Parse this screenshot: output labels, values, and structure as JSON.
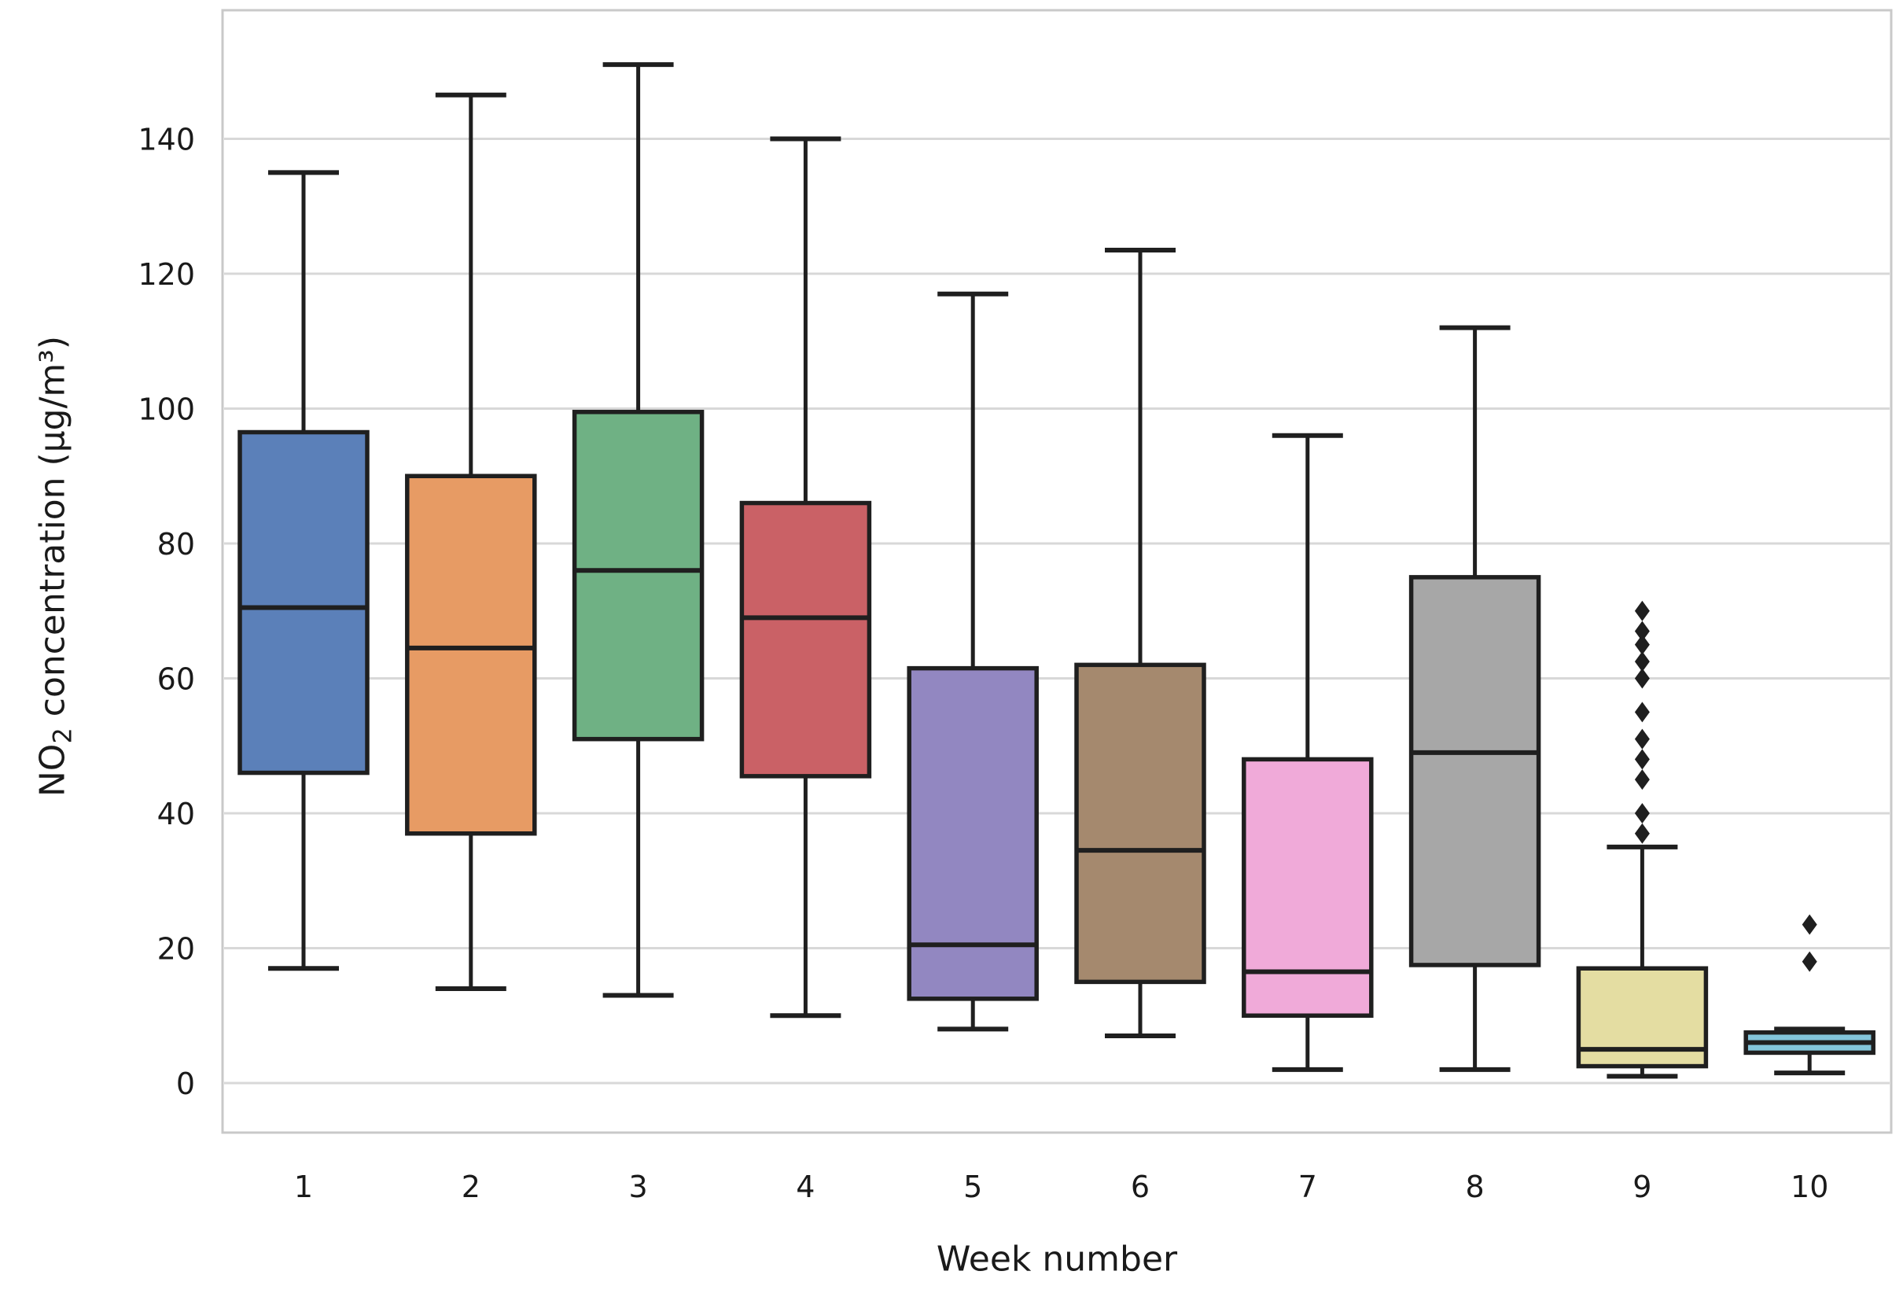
{
  "figure": {
    "background": "#ffffff",
    "xlabel": "Week number",
    "ylabel": {
      "main": "NO",
      "sub": "2",
      "rest": " concentration (µg/m³)"
    }
  },
  "colors": {
    "box_edge": "#1f1f1f",
    "median_line": "#1f1f1f",
    "whisker": "#1f1f1f",
    "outlier": "#1f1f1f",
    "gridline": "#d8d8d8",
    "spine": "#c9c9c9",
    "tick_text": "#1a1a1a"
  },
  "chart_data": {
    "type": "box",
    "title": "",
    "xlabel": "Week number",
    "ylabel": "NO2 concentration (µg/m³)",
    "categories": [
      "1",
      "2",
      "3",
      "4",
      "5",
      "6",
      "7",
      "8",
      "9",
      "10"
    ],
    "yticks": [
      0,
      20,
      40,
      60,
      80,
      100,
      120,
      140
    ],
    "ylim": [
      -7.5,
      159
    ],
    "grid": "horizontal-only",
    "legend": "none",
    "series": [
      {
        "week": "1",
        "color": "#5b80b9",
        "whisker_low": 17,
        "q1": 46,
        "median": 70.5,
        "q3": 96.5,
        "whisker_high": 135,
        "outliers": []
      },
      {
        "week": "2",
        "color": "#e79b64",
        "whisker_low": 14,
        "q1": 37,
        "median": 64.5,
        "q3": 90,
        "whisker_high": 146.5,
        "outliers": []
      },
      {
        "week": "3",
        "color": "#6fb184",
        "whisker_low": 13,
        "q1": 51,
        "median": 76,
        "q3": 99.5,
        "whisker_high": 151,
        "outliers": []
      },
      {
        "week": "4",
        "color": "#ca6166",
        "whisker_low": 10,
        "q1": 45.5,
        "median": 69,
        "q3": 86,
        "whisker_high": 140,
        "outliers": []
      },
      {
        "week": "5",
        "color": "#9287c1",
        "whisker_low": 8,
        "q1": 12.5,
        "median": 20.5,
        "q3": 61.5,
        "whisker_high": 117,
        "outliers": []
      },
      {
        "week": "6",
        "color": "#a5896e",
        "whisker_low": 7,
        "q1": 15,
        "median": 34.5,
        "q3": 62,
        "whisker_high": 123.5,
        "outliers": []
      },
      {
        "week": "7",
        "color": "#f0aad9",
        "whisker_low": 2,
        "q1": 10,
        "median": 16.5,
        "q3": 48,
        "whisker_high": 96,
        "outliers": []
      },
      {
        "week": "8",
        "color": "#a7a7a7",
        "whisker_low": 2,
        "q1": 17.5,
        "median": 49,
        "q3": 75,
        "whisker_high": 112,
        "outliers": []
      },
      {
        "week": "9",
        "color": "#e4dda2",
        "whisker_low": 1,
        "q1": 2.5,
        "median": 5,
        "q3": 17,
        "whisker_high": 35,
        "outliers": [
          37,
          40,
          45,
          48,
          51,
          55,
          60,
          62.5,
          65,
          67,
          70
        ]
      },
      {
        "week": "10",
        "color": "#83c5da",
        "whisker_low": 1.5,
        "q1": 4.5,
        "median": 6,
        "q3": 7.5,
        "whisker_high": 8,
        "outliers": [
          18,
          23.5
        ]
      }
    ]
  }
}
